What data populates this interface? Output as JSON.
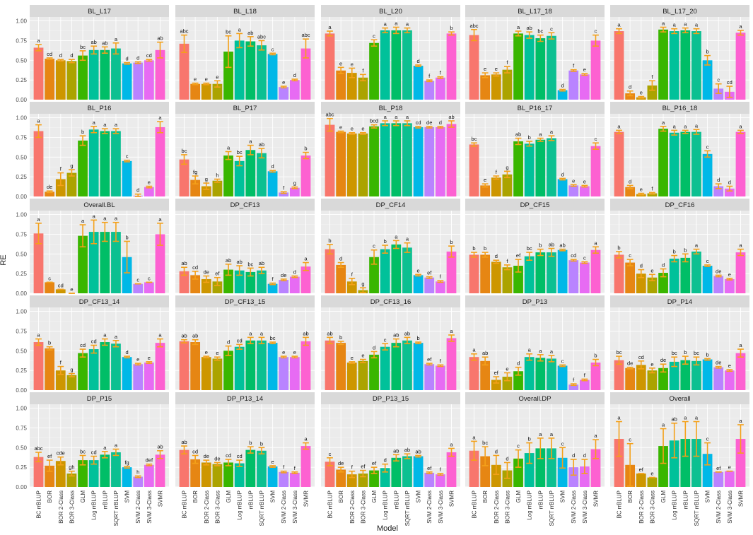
{
  "chart_data": {
    "type": "bar",
    "layout": "faceted 5x5 grid",
    "xlabel": "Model",
    "ylabel": "RE",
    "ylim": [
      0,
      1.05
    ],
    "yticks": [
      "0.00",
      "0.25",
      "0.50",
      "0.75",
      "1.00"
    ],
    "models": [
      "BC rrBLUP",
      "BOR",
      "BOR 2-Class",
      "BOR 3-Class",
      "GLM",
      "Log rrBLUP",
      "rrBLUP",
      "SQRT rrBLUP",
      "SVM",
      "SVM 2-Class",
      "SVM 3-Class",
      "SVMR"
    ],
    "colors": [
      "#f8766d",
      "#e48800",
      "#c49a00",
      "#99a800",
      "#53b400",
      "#00bc56",
      "#00c094",
      "#00bfc4",
      "#00b6eb",
      "#06a4ff",
      "#a58aff",
      "#df70f8",
      "#fb61d7"
    ],
    "bar_colors": [
      "#f8766d",
      "#e68613",
      "#cd9600",
      "#aba300",
      "#39b600",
      "#00c19a",
      "#00be67",
      "#0cc091",
      "#00b8e7",
      "#b983ff",
      "#e76bf3",
      "#fd61d1"
    ],
    "error_color": "#f4a11a",
    "panels": [
      {
        "title": "BL_L17",
        "values": [
          0.66,
          0.52,
          0.5,
          0.49,
          0.56,
          0.63,
          0.63,
          0.65,
          0.46,
          0.47,
          0.5,
          0.63
        ],
        "errors": [
          0.04,
          0.01,
          0.01,
          0.02,
          0.06,
          0.05,
          0.04,
          0.07,
          0.01,
          0.01,
          0.01,
          0.1
        ],
        "letters": [
          "a",
          "cd",
          "d",
          "d",
          "bc",
          "ab",
          "ab",
          "a",
          "d",
          "d",
          "cd",
          "ab"
        ]
      },
      {
        "title": "BL_L18",
        "values": [
          0.71,
          0.2,
          0.2,
          0.2,
          0.61,
          0.75,
          0.74,
          0.69,
          0.58,
          0.16,
          0.25,
          0.65
        ],
        "errors": [
          0.11,
          0.01,
          0.01,
          0.04,
          0.2,
          0.09,
          0.06,
          0.06,
          0.01,
          0.01,
          0.01,
          0.12
        ],
        "letters": [
          "abc",
          "e",
          "e",
          "e",
          "bc",
          "a",
          "ab",
          "abc",
          "c",
          "e",
          "d",
          "abc"
        ]
      },
      {
        "title": "BL_L20",
        "values": [
          0.84,
          0.37,
          0.34,
          0.28,
          0.72,
          0.88,
          0.88,
          0.88,
          0.43,
          0.24,
          0.28,
          0.84
        ],
        "errors": [
          0.03,
          0.04,
          0.06,
          0.04,
          0.04,
          0.03,
          0.04,
          0.03,
          0.01,
          0.01,
          0.01,
          0.02
        ],
        "letters": [
          "a",
          "e",
          "e",
          "f",
          "c",
          "a",
          "a",
          "a",
          "d",
          "f",
          "f",
          "b"
        ]
      },
      {
        "title": "BL_L17_18",
        "values": [
          0.82,
          0.31,
          0.32,
          0.38,
          0.84,
          0.82,
          0.78,
          0.81,
          0.12,
          0.37,
          0.32,
          0.75
        ],
        "errors": [
          0.07,
          0.03,
          0.02,
          0.04,
          0.03,
          0.04,
          0.04,
          0.04,
          0.01,
          0.01,
          0.01,
          0.07
        ],
        "letters": [
          "abc",
          "e",
          "e",
          "f",
          "a",
          "ab",
          "bc",
          "c",
          "d",
          "f",
          "e",
          "c"
        ]
      },
      {
        "title": "BL_L17_20",
        "values": [
          0.87,
          0.08,
          0.03,
          0.18,
          0.89,
          0.87,
          0.88,
          0.87,
          0.5,
          0.14,
          0.1,
          0.85
        ],
        "errors": [
          0.03,
          0.03,
          0.01,
          0.06,
          0.03,
          0.03,
          0.03,
          0.03,
          0.06,
          0.06,
          0.07,
          0.03
        ],
        "letters": [
          "a",
          "d",
          "e",
          "f",
          "a",
          "a",
          "a",
          "a",
          "b",
          "c",
          "cd",
          "a"
        ]
      },
      {
        "title": "BL_P16",
        "values": [
          0.83,
          0.06,
          0.22,
          0.3,
          0.71,
          0.85,
          0.83,
          0.83,
          0.45,
          0.01,
          0.12,
          0.88
        ],
        "errors": [
          0.08,
          0.01,
          0.08,
          0.04,
          0.06,
          0.04,
          0.03,
          0.03,
          0.01,
          0.02,
          0.01,
          0.07
        ],
        "letters": [
          "a",
          "de",
          "f",
          "g",
          "b",
          "a",
          "a",
          "a",
          "c",
          "d",
          "e",
          "a"
        ]
      },
      {
        "title": "BL_P17",
        "values": [
          0.47,
          0.21,
          0.13,
          0.2,
          0.52,
          0.45,
          0.59,
          0.55,
          0.32,
          0.05,
          0.11,
          0.52
        ],
        "errors": [
          0.06,
          0.05,
          0.04,
          0.02,
          0.05,
          0.06,
          0.06,
          0.06,
          0.01,
          0.01,
          0.01,
          0.04
        ],
        "letters": [
          "bc",
          "fg",
          "g",
          "h",
          "a",
          "bc",
          "a",
          "ab",
          "d",
          "f",
          "g",
          "b"
        ]
      },
      {
        "title": "BL_P18",
        "values": [
          0.91,
          0.82,
          0.8,
          0.8,
          0.89,
          0.93,
          0.93,
          0.93,
          0.88,
          0.88,
          0.88,
          0.92
        ],
        "errors": [
          0.08,
          0.01,
          0.01,
          0.01,
          0.02,
          0.03,
          0.03,
          0.03,
          0.01,
          0.01,
          0.01,
          0.04
        ],
        "letters": [
          "abc",
          "e",
          "e",
          "e",
          "bcd",
          "a",
          "a",
          "a",
          "cd",
          "de",
          "d",
          "ab"
        ]
      },
      {
        "title": "BL_P16_17",
        "values": [
          0.66,
          0.14,
          0.24,
          0.28,
          0.7,
          0.67,
          0.72,
          0.74,
          0.22,
          0.14,
          0.13,
          0.64
        ],
        "errors": [
          0.02,
          0.02,
          0.02,
          0.04,
          0.04,
          0.03,
          0.02,
          0.03,
          0.01,
          0.01,
          0.01,
          0.04
        ],
        "letters": [
          "bc",
          "e",
          "f",
          "g",
          "ab",
          "b",
          "a",
          "a",
          "d",
          "e",
          "e",
          "c"
        ]
      },
      {
        "title": "BL_P16_18",
        "values": [
          0.82,
          0.12,
          0.03,
          0.04,
          0.86,
          0.81,
          0.82,
          0.82,
          0.54,
          0.13,
          0.1,
          0.82
        ],
        "errors": [
          0.02,
          0.02,
          0.01,
          0.01,
          0.03,
          0.03,
          0.02,
          0.03,
          0.04,
          0.03,
          0.03,
          0.02
        ],
        "letters": [
          "a",
          "d",
          "e",
          "f",
          "a",
          "a",
          "a",
          "a",
          "c",
          "d",
          "d",
          "a"
        ]
      },
      {
        "title": "Overall.BL",
        "values": [
          0.76,
          0.14,
          0.05,
          0.0,
          0.73,
          0.78,
          0.78,
          0.78,
          0.46,
          0.12,
          0.14,
          0.75
        ],
        "errors": [
          0.13,
          0.0,
          0.0,
          0.0,
          0.14,
          0.15,
          0.12,
          0.12,
          0.2,
          0.0,
          0.0,
          0.14
        ],
        "letters": [
          "a",
          "c",
          "cd",
          "e",
          "a",
          "a",
          "a",
          "a",
          "b",
          "c",
          "c",
          "a"
        ]
      },
      {
        "title": "DP_CF13",
        "values": [
          0.28,
          0.23,
          0.18,
          0.15,
          0.3,
          0.29,
          0.27,
          0.29,
          0.12,
          0.17,
          0.21,
          0.34
        ],
        "errors": [
          0.05,
          0.05,
          0.04,
          0.05,
          0.07,
          0.06,
          0.05,
          0.04,
          0.01,
          0.01,
          0.01,
          0.05
        ],
        "letters": [
          "ab",
          "cd",
          "de",
          "ef",
          "ab",
          "ab",
          "bc",
          "ab",
          "f",
          "de",
          "d",
          "a"
        ]
      },
      {
        "title": "DP_CF14",
        "values": [
          0.56,
          0.36,
          0.15,
          0.04,
          0.46,
          0.56,
          0.62,
          0.58,
          0.23,
          0.2,
          0.15,
          0.53
        ],
        "errors": [
          0.06,
          0.03,
          0.04,
          0.03,
          0.09,
          0.05,
          0.05,
          0.06,
          0.01,
          0.01,
          0.01,
          0.07
        ],
        "letters": [
          "b",
          "d",
          "f",
          "g",
          "c",
          "b",
          "a",
          "a",
          "e",
          "ef",
          "f",
          "b"
        ]
      },
      {
        "title": "DP_CF15",
        "values": [
          0.49,
          0.49,
          0.4,
          0.33,
          0.35,
          0.47,
          0.52,
          0.52,
          0.55,
          0.42,
          0.39,
          0.55
        ],
        "errors": [
          0.03,
          0.03,
          0.02,
          0.03,
          0.08,
          0.05,
          0.04,
          0.05,
          0.01,
          0.01,
          0.01,
          0.04
        ],
        "letters": [
          "b",
          "b",
          "d",
          "f",
          "ef",
          "bc",
          "b",
          "ab",
          "ab",
          "cd",
          "c",
          "a"
        ]
      },
      {
        "title": "DP_CF16",
        "values": [
          0.49,
          0.39,
          0.25,
          0.2,
          0.26,
          0.44,
          0.45,
          0.53,
          0.35,
          0.22,
          0.18,
          0.52
        ],
        "errors": [
          0.04,
          0.04,
          0.05,
          0.04,
          0.05,
          0.04,
          0.05,
          0.03,
          0.01,
          0.01,
          0.01,
          0.04
        ],
        "letters": [
          "b",
          "c",
          "d",
          "e",
          "d",
          "b",
          "b",
          "a",
          "c",
          "de",
          "e",
          "a"
        ]
      },
      {
        "title": "DP_CF13_14",
        "values": [
          0.61,
          0.53,
          0.25,
          0.19,
          0.47,
          0.52,
          0.61,
          0.59,
          0.42,
          0.33,
          0.35,
          0.6
        ],
        "errors": [
          0.04,
          0.02,
          0.05,
          0.02,
          0.05,
          0.05,
          0.04,
          0.04,
          0.01,
          0.01,
          0.01,
          0.05
        ],
        "letters": [
          "a",
          "b",
          "f",
          "g",
          "cd",
          "cd",
          "a",
          "a",
          "d",
          "e",
          "e",
          "a"
        ]
      },
      {
        "title": "DP_CF13_15",
        "values": [
          0.62,
          0.61,
          0.42,
          0.4,
          0.5,
          0.55,
          0.63,
          0.63,
          0.6,
          0.42,
          0.42,
          0.62
        ],
        "errors": [
          0.02,
          0.03,
          0.01,
          0.02,
          0.06,
          0.03,
          0.04,
          0.04,
          0.01,
          0.01,
          0.01,
          0.05
        ],
        "letters": [
          "ab",
          "ab",
          "e",
          "e",
          "d",
          "cd",
          "a",
          "a",
          "bc",
          "e",
          "e",
          "ab"
        ]
      },
      {
        "title": "DP_CF13_16",
        "values": [
          0.63,
          0.6,
          0.35,
          0.37,
          0.45,
          0.55,
          0.6,
          0.63,
          0.6,
          0.33,
          0.31,
          0.66
        ],
        "errors": [
          0.04,
          0.02,
          0.01,
          0.02,
          0.04,
          0.04,
          0.05,
          0.04,
          0.01,
          0.01,
          0.01,
          0.04
        ],
        "letters": [
          "ab",
          "b",
          "e",
          "e",
          "d",
          "c",
          "ab",
          "ab",
          "b",
          "ef",
          "f",
          "a"
        ]
      },
      {
        "title": "DP_P13",
        "values": [
          0.42,
          0.37,
          0.13,
          0.17,
          0.24,
          0.42,
          0.41,
          0.4,
          0.31,
          0.07,
          0.13,
          0.35
        ],
        "errors": [
          0.04,
          0.05,
          0.04,
          0.05,
          0.05,
          0.04,
          0.04,
          0.04,
          0.01,
          0.01,
          0.01,
          0.04
        ],
        "letters": [
          "a",
          "ab",
          "ef",
          "e",
          "d",
          "a",
          "a",
          "a",
          "c",
          "f",
          "f",
          "b"
        ]
      },
      {
        "title": "DP_P14",
        "values": [
          0.38,
          0.28,
          0.32,
          0.25,
          0.28,
          0.36,
          0.38,
          0.37,
          0.39,
          0.29,
          0.25,
          0.47
        ],
        "errors": [
          0.05,
          0.01,
          0.05,
          0.03,
          0.05,
          0.06,
          0.05,
          0.05,
          0.01,
          0.01,
          0.01,
          0.05
        ],
        "letters": [
          "bc",
          "de",
          "cd",
          "e",
          "de",
          "bc",
          "b",
          "bc",
          "b",
          "de",
          "e",
          "a"
        ]
      },
      {
        "title": "DP_P15",
        "values": [
          0.38,
          0.27,
          0.33,
          0.17,
          0.34,
          0.34,
          0.41,
          0.44,
          0.25,
          0.13,
          0.28,
          0.41
        ],
        "errors": [
          0.06,
          0.07,
          0.05,
          0.03,
          0.06,
          0.05,
          0.04,
          0.04,
          0.01,
          0.01,
          0.01,
          0.05
        ],
        "letters": [
          "abc",
          "ef",
          "cde",
          "gh",
          "bc",
          "cd",
          "a",
          "a",
          "fg",
          "h",
          "def",
          "ab"
        ]
      },
      {
        "title": "DP_P13_14",
        "values": [
          0.47,
          0.35,
          0.31,
          0.29,
          0.31,
          0.3,
          0.47,
          0.46,
          0.26,
          0.19,
          0.18,
          0.52
        ],
        "errors": [
          0.05,
          0.05,
          0.03,
          0.02,
          0.04,
          0.04,
          0.04,
          0.04,
          0.01,
          0.01,
          0.01,
          0.04
        ],
        "letters": [
          "ab",
          "cd",
          "de",
          "de",
          "cd",
          "cd",
          "b",
          "b",
          "e",
          "f",
          "f",
          "a"
        ]
      },
      {
        "title": "DP_P13_15",
        "values": [
          0.32,
          0.22,
          0.16,
          0.17,
          0.21,
          0.24,
          0.37,
          0.39,
          0.39,
          0.18,
          0.16,
          0.44
        ],
        "errors": [
          0.05,
          0.03,
          0.04,
          0.04,
          0.04,
          0.05,
          0.04,
          0.03,
          0.01,
          0.01,
          0.01,
          0.05
        ],
        "letters": [
          "c",
          "de",
          "f",
          "ef",
          "ef",
          "d",
          "ab",
          "ab",
          "ab",
          "ef",
          "f",
          "a"
        ]
      },
      {
        "title": "Overall.DP",
        "values": [
          0.46,
          0.39,
          0.28,
          0.21,
          0.36,
          0.43,
          0.49,
          0.49,
          0.37,
          0.25,
          0.26,
          0.48
        ],
        "errors": [
          0.12,
          0.12,
          0.12,
          0.1,
          0.11,
          0.13,
          0.13,
          0.13,
          0.13,
          0.1,
          0.09,
          0.12
        ],
        "letters": [
          "a",
          "bc",
          "d",
          "d",
          "c",
          "b",
          "a",
          "a",
          "c",
          "d",
          "d",
          "a"
        ]
      },
      {
        "title": "Overall",
        "values": [
          0.61,
          0.28,
          0.17,
          0.12,
          0.52,
          0.59,
          0.61,
          0.61,
          0.42,
          0.19,
          0.2,
          0.61
        ],
        "errors": [
          0.22,
          0.27,
          0.0,
          0.0,
          0.22,
          0.22,
          0.22,
          0.22,
          0.14,
          0.0,
          0.0,
          0.18
        ],
        "letters": [
          "a",
          "c",
          "ef",
          "e",
          "a",
          "ab",
          "a",
          "a",
          "c",
          "ef",
          "e",
          "a"
        ]
      }
    ]
  }
}
